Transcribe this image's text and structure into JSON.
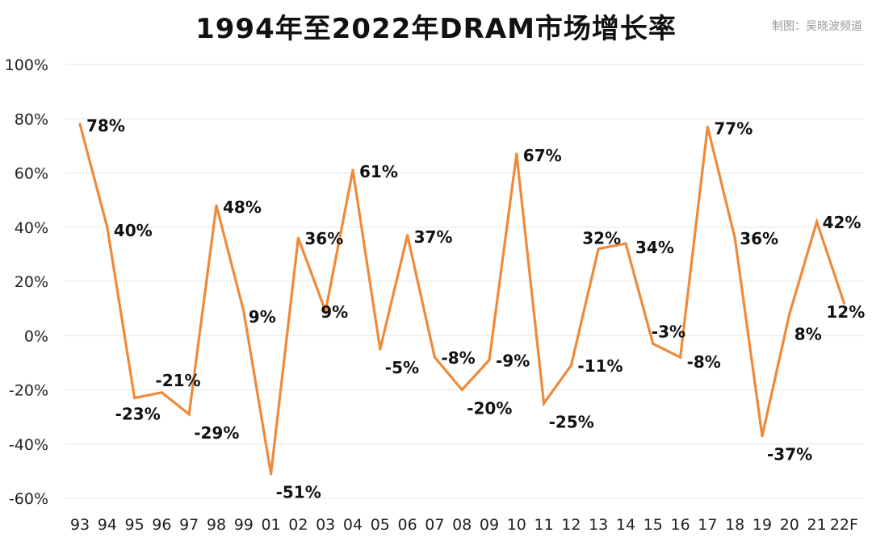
{
  "title": "1994年至2022年DRAM市场增长率",
  "credit": "制图：吴晓波频道",
  "colors": {
    "line": "#EE8A3A",
    "grid": "#e6e6e6",
    "text": "#111111"
  },
  "chart_data": {
    "type": "line",
    "title": "1994年至2022年DRAM市场增长率",
    "xlabel": "",
    "ylabel": "",
    "ylim": [
      -60,
      100
    ],
    "yticks": [
      100,
      80,
      60,
      40,
      20,
      0,
      -20,
      -40,
      -60
    ],
    "ytick_labels": [
      "100%",
      "80%",
      "60%",
      "40%",
      "20%",
      "0%",
      "-20%",
      "-40%",
      "-60%"
    ],
    "grid": true,
    "categories": [
      "93",
      "94",
      "95",
      "96",
      "97",
      "98",
      "99",
      "01",
      "02",
      "03",
      "04",
      "05",
      "06",
      "07",
      "08",
      "09",
      "10",
      "11",
      "12",
      "13",
      "14",
      "15",
      "16",
      "17",
      "18",
      "19",
      "20",
      "21",
      "22F"
    ],
    "series": [
      {
        "name": "DRAM市场增长率",
        "values": [
          78,
          40,
          -23,
          -21,
          -29,
          48,
          9,
          -51,
          36,
          9,
          61,
          -5,
          37,
          -8,
          -20,
          -9,
          67,
          -25,
          -11,
          32,
          34,
          -3,
          -8,
          77,
          36,
          -37,
          8,
          42,
          12
        ],
        "data_labels": [
          "78%",
          "40%",
          "-23%",
          "-21%",
          "-29%",
          "48%",
          "9%",
          "-51%",
          "36%",
          "9%",
          "61%",
          "-5%",
          "37%",
          "-8%",
          "-20%",
          "-9%",
          "67%",
          "-25%",
          "-11%",
          "32%",
          "34%",
          "-3%",
          "-8%",
          "77%",
          "36%",
          "-37%",
          "8%",
          "42%",
          "12%"
        ]
      }
    ]
  }
}
